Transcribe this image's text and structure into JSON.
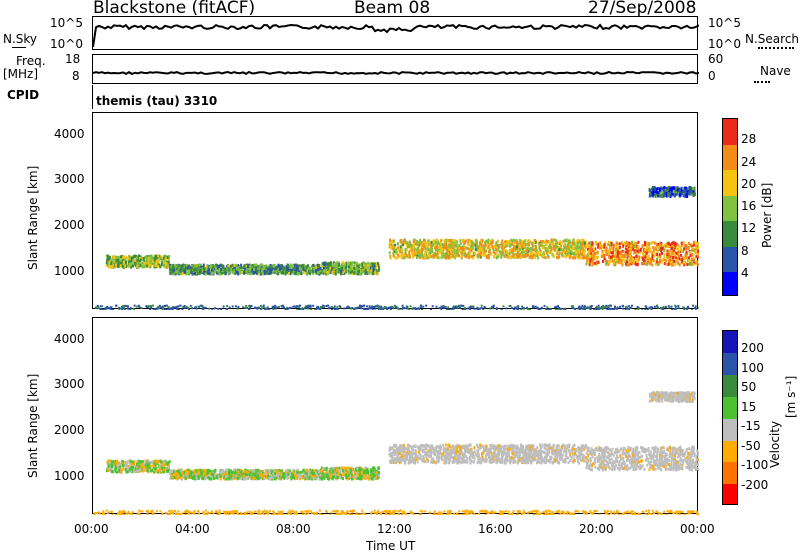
{
  "header": {
    "station": "Blackstone (fitACF)",
    "beam": "Beam 08",
    "date": "27/Sep/2008"
  },
  "left_labels": {
    "nsky": "N.Sky",
    "freq": "Freq.",
    "mhz": "[MHz]",
    "cpid": "CPID"
  },
  "right_labels": {
    "nsearch": "N.Search",
    "nave": "Nave"
  },
  "nsky_ticks": {
    "top": "10^5",
    "bottom": "10^0"
  },
  "freq_ticks": {
    "top": "18",
    "bottom": "8"
  },
  "nave_ticks": {
    "top": "60",
    "bottom": "0"
  },
  "cpid_text": "themis (tau) 3310",
  "chart_data": [
    {
      "type": "heatmap",
      "title": "",
      "ylabel": "Slant Range [km]",
      "ylim": [
        180,
        4500
      ],
      "yticks": [
        "4000",
        "3000",
        "2000",
        "1000"
      ],
      "colorbar_label": "Power [dB]",
      "colorbar_ticks": [
        "28",
        "24",
        "20",
        "16",
        "12",
        "8",
        "4"
      ],
      "colors": [
        "#0000ff",
        "#2b53a8",
        "#3a8a3c",
        "#7fc241",
        "#f5c311",
        "#f28b17",
        "#ea2a1a"
      ],
      "echo_bands": [
        {
          "t": [
            0.5,
            3.0
          ],
          "r": [
            1150,
            1400
          ],
          "level": 0.5
        },
        {
          "t": [
            3.0,
            9.0
          ],
          "r": [
            1000,
            1200
          ],
          "level": 0.35
        },
        {
          "t": [
            9.0,
            11.3
          ],
          "r": [
            1000,
            1250
          ],
          "level": 0.45
        },
        {
          "t": [
            11.7,
            19.5
          ],
          "r": [
            1350,
            1750
          ],
          "level": 0.65
        },
        {
          "t": [
            19.5,
            24.0
          ],
          "r": [
            1200,
            1700
          ],
          "level": 0.8
        },
        {
          "t": [
            22.0,
            23.8
          ],
          "r": [
            2700,
            2900
          ],
          "level": 0.2
        }
      ]
    },
    {
      "type": "heatmap",
      "title": "",
      "ylabel": "Slant Range [km]",
      "xlabel": "Time UT",
      "xticks": [
        "00:00",
        "04:00",
        "08:00",
        "12:00",
        "16:00",
        "20:00",
        "00:00"
      ],
      "ylim": [
        180,
        4500
      ],
      "yticks": [
        "4000",
        "3000",
        "2000",
        "1000"
      ],
      "colorbar_label": "Velocity",
      "colorbar_units": "[m s⁻¹]",
      "colorbar_ticks": [
        "200",
        "100",
        "50",
        "15",
        "-15",
        "-50",
        "-100",
        "-200"
      ],
      "colors": [
        "#ff0000",
        "#ff7200",
        "#ffab00",
        "#bebebe",
        "#4ac232",
        "#3a8a3c",
        "#2b53a8",
        "#1515b8"
      ]
    }
  ]
}
